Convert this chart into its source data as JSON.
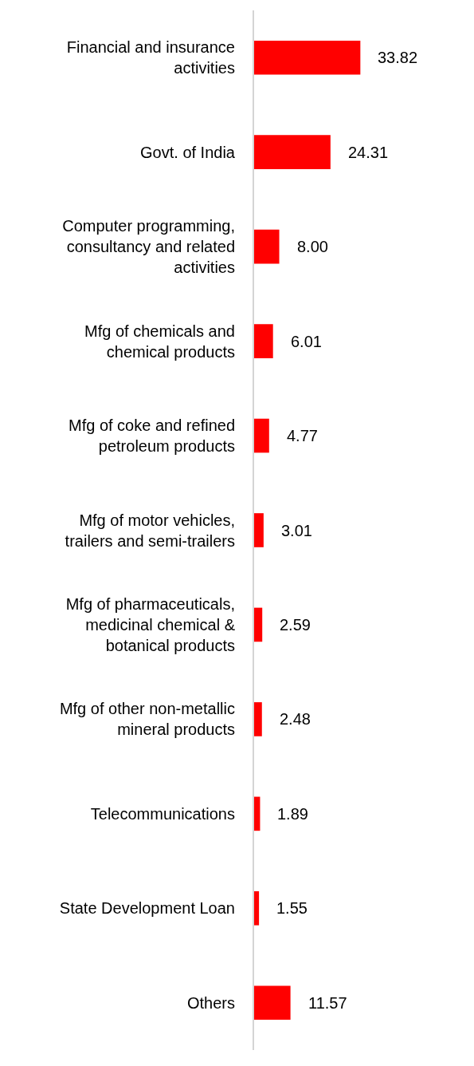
{
  "chart_data": {
    "type": "bar",
    "orientation": "horizontal",
    "categories": [
      "Financial and insurance activities",
      "Govt. of India",
      "Computer programming, consultancy and related activities",
      "Mfg of chemicals and chemical products",
      "Mfg of coke and refined petroleum products",
      "Mfg of motor vehicles, trailers and semi-trailers",
      "Mfg of pharmaceuticals, medicinal chemical & botanical products",
      "Mfg of other non-metallic mineral products",
      "Telecommunications",
      "State Development Loan",
      "Others"
    ],
    "values": [
      33.82,
      24.31,
      8.0,
      6.01,
      4.77,
      3.01,
      2.59,
      2.48,
      1.89,
      1.55,
      11.57
    ],
    "value_labels": [
      "33.82",
      "24.31",
      "8.00",
      "6.01",
      "4.77",
      "3.01",
      "2.59",
      "2.48",
      "1.89",
      "1.55",
      "11.57"
    ],
    "color": "#ff0000",
    "xlim": [
      0,
      70
    ],
    "tick_labels": "y"
  }
}
